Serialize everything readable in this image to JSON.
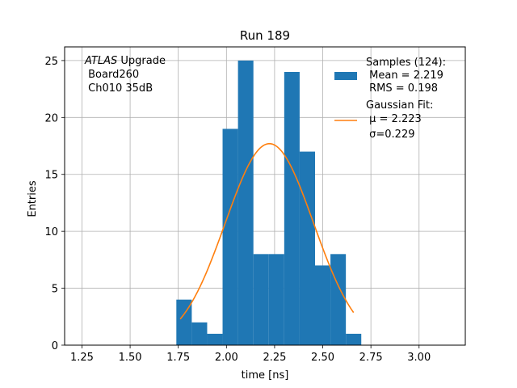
{
  "chart_data": {
    "type": "bar",
    "title": "Run 189",
    "xlabel": "time [ns]",
    "ylabel": "Entries",
    "xlim": [
      1.16,
      3.24
    ],
    "ylim": [
      0,
      26.2
    ],
    "grid": true,
    "legend_placement": "top-right",
    "xticks": [
      "1.25",
      "1.50",
      "1.75",
      "2.00",
      "2.25",
      "2.50",
      "2.75",
      "3.00"
    ],
    "xtick_values": [
      1.25,
      1.5,
      1.75,
      2.0,
      2.25,
      2.5,
      2.75,
      3.0
    ],
    "yticks": [
      "0",
      "5",
      "10",
      "15",
      "20",
      "25"
    ],
    "ytick_values": [
      0,
      5,
      10,
      15,
      20,
      25
    ],
    "histogram": {
      "bin_edges": [
        1.74,
        1.82,
        1.9,
        1.98,
        2.06,
        2.14,
        2.22,
        2.3,
        2.38,
        2.46,
        2.54,
        2.62,
        2.7
      ],
      "counts": [
        4,
        2,
        1,
        19,
        25,
        8,
        8,
        24,
        17,
        7,
        8,
        1
      ],
      "color": "#1f77b4"
    },
    "fit": {
      "amplitude": 17.7,
      "mu": 2.223,
      "sigma": 0.229,
      "x_range": [
        1.76,
        2.66
      ],
      "color": "#ff7f0e"
    },
    "legend": {
      "samples_lines": [
        "Samples (124):",
        " Mean = 2.219",
        " RMS = 0.198"
      ],
      "fit_lines": [
        "Gaussian Fit:",
        " μ = 2.223",
        " σ=0.229"
      ]
    },
    "annotation": {
      "italic": "ATLAS",
      "rest": " Upgrade",
      "line2": " Board260",
      "line3": " Ch010 35dB"
    }
  }
}
